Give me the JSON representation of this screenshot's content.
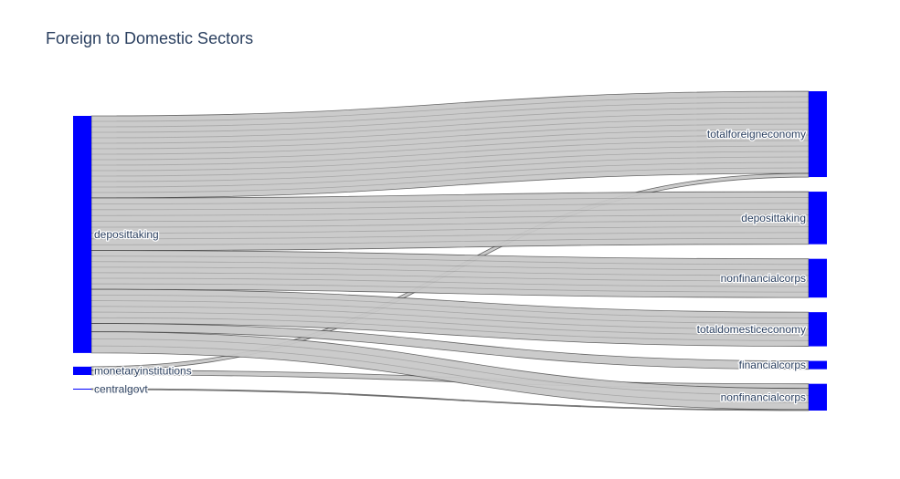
{
  "chart_data": {
    "type": "sankey",
    "title": "Foreign to Domestic Sectors",
    "node_color": "#0000ff",
    "link_color": "#c8c8c8",
    "link_outline_color": "#000000",
    "nodes": [
      {
        "label": "deposittaking",
        "column": 0
      },
      {
        "label": "monetaryinstitutions",
        "column": 0
      },
      {
        "label": "centralgovt",
        "column": 0
      },
      {
        "label": "totalforeigneconomy",
        "column": 1
      },
      {
        "label": "deposittaking",
        "column": 1
      },
      {
        "label": "nonfinancialcorps",
        "column": 1
      },
      {
        "label": "totaldomesticeconomy",
        "column": 1
      },
      {
        "label": "financialcorps",
        "column": 1
      },
      {
        "label": "nonfinancialcorps",
        "column": 1
      }
    ],
    "links": [
      {
        "source": 0,
        "target": 3,
        "value": 89
      },
      {
        "source": 1,
        "target": 3,
        "value": 4
      },
      {
        "source": 0,
        "target": 4,
        "value": 57
      },
      {
        "source": 0,
        "target": 5,
        "value": 42
      },
      {
        "source": 0,
        "target": 6,
        "value": 37
      },
      {
        "source": 0,
        "target": 7,
        "value": 9
      },
      {
        "source": 1,
        "target": 8,
        "value": 5
      },
      {
        "source": 0,
        "target": 8,
        "value": 23
      },
      {
        "source": 2,
        "target": 8,
        "value": 1
      }
    ]
  }
}
